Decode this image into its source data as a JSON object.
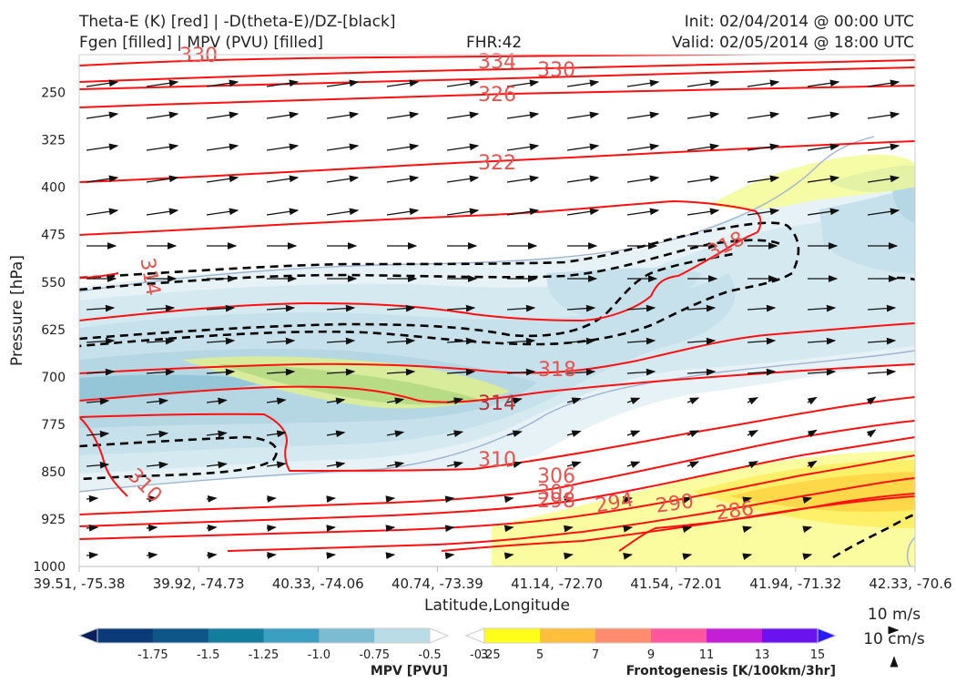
{
  "header": {
    "line1_left": "Theta-E (K) [red] | -D(theta-E)/DZ-[black]",
    "line2_left": "Fgen [filled] | MPV (PVU) [filled]",
    "fhr": "FHR:42",
    "init": "Init: 02/04/2014 @ 00:00 UTC",
    "valid": "Valid: 02/05/2014 @ 18:00 UTC"
  },
  "chart_data": {
    "type": "cross-section",
    "title": "Theta-E (K) [red] | -D(theta-E)/DZ-[black] / Fgen [filled] | MPV (PVU) [filled]",
    "xlabel": "Latitude,Longitude",
    "ylabel": "Pressure [hPa]",
    "x_ticks": [
      "39.51, -75.38",
      "39.92, -74.73",
      "40.33, -74.06",
      "40.74, -73.39",
      "41.14, -72.70",
      "41.54, -72.01",
      "41.94, -71.32",
      "42.33, -70.6"
    ],
    "y_ticks": [
      250,
      325,
      400,
      475,
      550,
      625,
      700,
      775,
      850,
      925,
      1000
    ],
    "ylim": [
      1000,
      190
    ],
    "theta_e_contour_labels": [
      "330",
      "334",
      "330",
      "326",
      "322",
      "318",
      "314",
      "318",
      "314",
      "310",
      "310",
      "306",
      "302",
      "298",
      "294",
      "290",
      "286"
    ],
    "wind_reference": [
      "10 m/s",
      "10 cm/s"
    ],
    "colorbars": [
      {
        "name": "MPV [PVU]",
        "ticks": [
          "-1.75",
          "-1.5",
          "-1.25",
          "-1.0",
          "-0.75",
          "-0.5",
          "-0.25"
        ],
        "colors": [
          "#08205e",
          "#0b3a78",
          "#0e5688",
          "#127d9c",
          "#3a9fc0",
          "#7cbcd3",
          "#b9dce6",
          "#ffffff"
        ]
      },
      {
        "name": "Frontogenesis [K/100km/3hr]",
        "ticks": [
          "3",
          "5",
          "7",
          "9",
          "11",
          "13",
          "15"
        ],
        "colors": [
          "#ffffff",
          "#ffff1a",
          "#ffbe3c",
          "#ff8c6e",
          "#ff56a0",
          "#c21fd6",
          "#6a12f0",
          "#2a1aff"
        ]
      }
    ]
  }
}
